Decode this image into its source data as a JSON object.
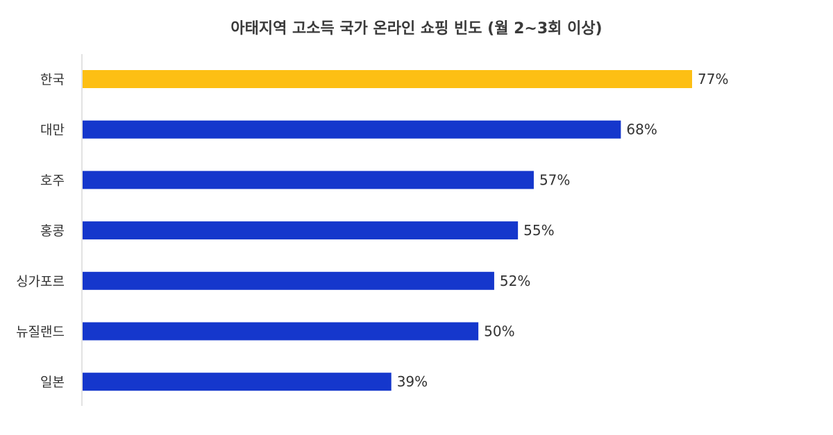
{
  "chart_data": {
    "type": "bar",
    "orientation": "horizontal",
    "title": "아태지역 고소득 국가 온라인 쇼핑 빈도 (월 2~3회 이상)",
    "categories": [
      "한국",
      "대만",
      "호주",
      "홍콩",
      "싱가포르",
      "뉴질랜드",
      "일본"
    ],
    "values": [
      77,
      68,
      57,
      55,
      52,
      50,
      39
    ],
    "value_labels": [
      "77%",
      "68%",
      "57%",
      "55%",
      "52%",
      "50%",
      "39%"
    ],
    "unit": "%",
    "highlight_category": "한국",
    "colors": {
      "highlight": "#FDBF14",
      "default": "#1537CC",
      "axis": "#d8d8d8"
    },
    "grid": false,
    "legend": "none"
  }
}
